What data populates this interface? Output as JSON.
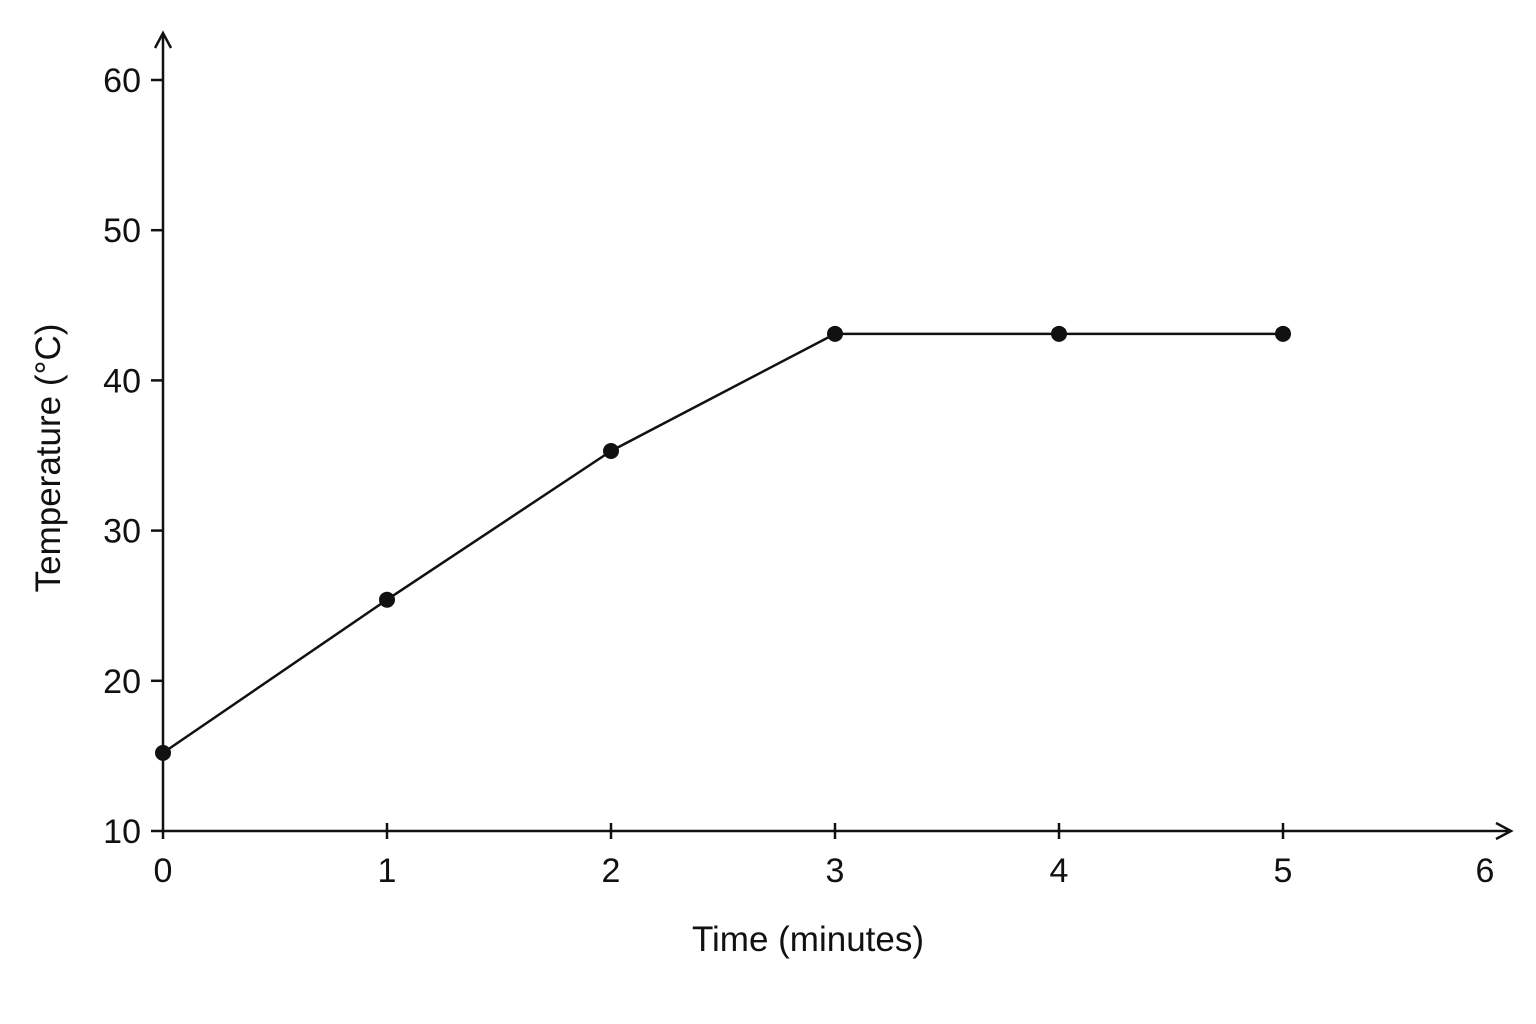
{
  "chart_data": {
    "type": "line",
    "title": "",
    "xlabel": "Time (minutes)",
    "ylabel": "Temperature (°C)",
    "xlim": [
      0,
      6
    ],
    "ylim": [
      10,
      60
    ],
    "x_ticks": [
      "0",
      "1",
      "2",
      "3",
      "4",
      "5",
      "6"
    ],
    "y_ticks": [
      "10",
      "20",
      "30",
      "40",
      "50",
      "60"
    ],
    "grid": false,
    "legend": "none",
    "series": [
      {
        "x": [
          0,
          1,
          2,
          3,
          4,
          5
        ],
        "y": [
          15.2,
          25.4,
          35.3,
          43.1,
          43.1,
          43.1
        ]
      }
    ],
    "colors": {
      "axis": "#111111",
      "line": "#111111",
      "marker": "#111111"
    }
  }
}
